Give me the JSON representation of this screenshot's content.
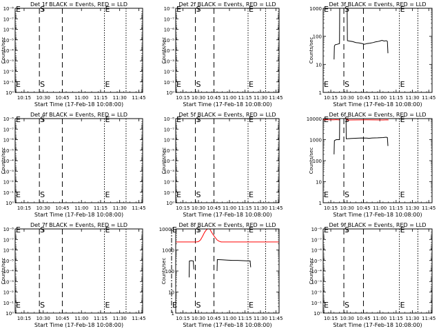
{
  "figure": {
    "background": "#ffffff",
    "axis_color": "#000000",
    "events_color": "#000000",
    "lld_color": "#ff0000"
  },
  "chart_data": [
    {
      "type": "line",
      "panel": "1",
      "title": "Det 1f BLACK = Events, RED = LLD",
      "xlabel": "Start Time (17-Feb-18 10:08:00)",
      "ylabel": "Counts/sec",
      "xlim_minutes": [
        0,
        100
      ],
      "ylim": [
        1,
        1e-08
      ],
      "y_scale": "log",
      "xtick_labels": [
        "10:15",
        "10:30",
        "10:45",
        "11:00",
        "11:15",
        "11:30",
        "11:45"
      ],
      "ytick_labels": [
        "10⁰",
        "10⁻¹",
        "10⁻²",
        "10⁻³",
        "10⁻⁴",
        "10⁻⁵",
        "10⁻⁶",
        "10⁻⁷",
        "10⁻⁸"
      ],
      "vlines": [
        {
          "time": "10:08",
          "style": "dashdot",
          "label": "E"
        },
        {
          "time": "10:27",
          "style": "dashed",
          "label": "S"
        },
        {
          "time": "10:45",
          "style": "dashed"
        },
        {
          "time": "11:18",
          "style": "dotted",
          "label": "E"
        },
        {
          "time": "11:35",
          "style": "dotted"
        }
      ],
      "series": []
    },
    {
      "type": "line",
      "panel": "2",
      "title": "Det 2f BLACK = Events, RED = LLD",
      "xlabel": "Start Time (17-Feb-18 10:08:00)",
      "ylabel": "Counts/sec",
      "xlim_minutes": [
        0,
        100
      ],
      "ylim": [
        1,
        1e-08
      ],
      "y_scale": "log",
      "xtick_labels": [
        "10:15",
        "10:30",
        "10:45",
        "11:00",
        "11:15",
        "11:30",
        "11:45"
      ],
      "ytick_labels": [
        "10⁰",
        "10⁻¹",
        "10⁻²",
        "10⁻³",
        "10⁻⁴",
        "10⁻⁵",
        "10⁻⁶",
        "10⁻⁷",
        "10⁻⁸"
      ],
      "vlines": [
        {
          "time": "10:08",
          "style": "dashdot",
          "label": "E"
        },
        {
          "time": "10:27",
          "style": "dashed",
          "label": "S"
        },
        {
          "time": "10:45",
          "style": "dashed"
        },
        {
          "time": "11:18",
          "style": "dotted",
          "label": "E"
        },
        {
          "time": "11:35",
          "style": "dotted"
        }
      ],
      "series": []
    },
    {
      "type": "line",
      "panel": "3",
      "title": "Det 3f BLACK = Events, RED = LLD",
      "xlabel": "Start Time (17-Feb-18 10:08:00)",
      "ylabel": "Counts/sec",
      "xlim_minutes": [
        0,
        100
      ],
      "ylim": [
        1,
        1000
      ],
      "y_scale": "log",
      "xtick_labels": [
        "10:15",
        "10:30",
        "10:45",
        "11:00",
        "11:15",
        "11:30",
        "11:45"
      ],
      "ytick_labels": [
        "1",
        "10",
        "100",
        "1000"
      ],
      "vlines": [
        {
          "time": "10:08",
          "style": "dashdot",
          "label": "E"
        },
        {
          "time": "10:27",
          "style": "dashed",
          "label": "S"
        },
        {
          "time": "10:45",
          "style": "dashed"
        },
        {
          "time": "11:18",
          "style": "dotted",
          "label": "E"
        },
        {
          "time": "11:35",
          "style": "dotted"
        }
      ],
      "series": [
        {
          "color": "#000000",
          "points": [
            [
              10,
              15
            ],
            [
              10.3,
              45
            ],
            [
              11,
              50
            ],
            [
              13,
              52
            ],
            [
              15,
              55
            ],
            [
              15.2,
              1000
            ]
          ]
        },
        {
          "color": "#000000",
          "points": [
            [
              22,
              1000
            ],
            [
              22.3,
              70
            ],
            [
              24,
              68
            ],
            [
              27,
              65
            ],
            [
              30,
              60
            ],
            [
              33,
              58
            ],
            [
              36,
              55
            ],
            [
              38,
              52
            ],
            [
              40,
              55
            ],
            [
              43,
              57
            ],
            [
              46,
              60
            ],
            [
              48,
              63
            ],
            [
              50,
              65
            ],
            [
              52,
              68
            ],
            [
              54,
              72
            ],
            [
              55,
              70
            ],
            [
              56,
              68
            ],
            [
              58,
              70
            ],
            [
              59,
              66
            ],
            [
              59.5,
              25
            ]
          ]
        }
      ]
    },
    {
      "type": "line",
      "panel": "4",
      "title": "Det 4f BLACK = Events, RED = LLD",
      "xlabel": "Start Time (17-Feb-18 10:08:00)",
      "ylabel": "Counts/sec",
      "xlim_minutes": [
        0,
        100
      ],
      "ylim": [
        1,
        1e-08
      ],
      "y_scale": "log",
      "xtick_labels": [
        "10:15",
        "10:30",
        "10:45",
        "11:00",
        "11:15",
        "11:30",
        "11:45"
      ],
      "ytick_labels": [
        "10⁰",
        "10⁻¹",
        "10⁻²",
        "10⁻³",
        "10⁻⁴",
        "10⁻⁵",
        "10⁻⁶",
        "10⁻⁷",
        "10⁻⁸"
      ],
      "vlines": [
        {
          "time": "10:08",
          "style": "dashdot",
          "label": "E"
        },
        {
          "time": "10:27",
          "style": "dashed",
          "label": "S"
        },
        {
          "time": "10:45",
          "style": "dashed"
        },
        {
          "time": "11:18",
          "style": "dotted",
          "label": "E"
        },
        {
          "time": "11:35",
          "style": "dotted"
        }
      ],
      "series": []
    },
    {
      "type": "line",
      "panel": "5",
      "title": "Det 5f BLACK = Events, RED = LLD",
      "xlabel": "Start Time (17-Feb-18 10:08:00)",
      "ylabel": "Counts/sec",
      "xlim_minutes": [
        0,
        100
      ],
      "ylim": [
        1,
        1e-08
      ],
      "y_scale": "log",
      "xtick_labels": [
        "10:15",
        "10:30",
        "10:45",
        "11:00",
        "11:15",
        "11:30",
        "11:45"
      ],
      "ytick_labels": [
        "10⁰",
        "10⁻¹",
        "10⁻²",
        "10⁻³",
        "10⁻⁴",
        "10⁻⁵",
        "10⁻⁶",
        "10⁻⁷",
        "10⁻⁸"
      ],
      "vlines": [
        {
          "time": "10:08",
          "style": "dashdot",
          "label": "E"
        },
        {
          "time": "10:27",
          "style": "dashed",
          "label": "S"
        },
        {
          "time": "10:45",
          "style": "dashed"
        },
        {
          "time": "11:18",
          "style": "dotted",
          "label": "E"
        },
        {
          "time": "11:35",
          "style": "dotted"
        }
      ],
      "series": []
    },
    {
      "type": "line",
      "panel": "6",
      "title": "Det 6f BLACK = Events, RED = LLD",
      "xlabel": "Start Time (17-Feb-18 10:08:00)",
      "ylabel": "Counts/sec",
      "xlim_minutes": [
        0,
        100
      ],
      "ylim": [
        1,
        10000
      ],
      "y_scale": "log",
      "xtick_labels": [
        "10:15",
        "10:30",
        "10:45",
        "11:00",
        "11:15",
        "11:30",
        "11:45"
      ],
      "ytick_labels": [
        "1",
        "10",
        "100",
        "1000",
        "10000"
      ],
      "vlines": [
        {
          "time": "10:08",
          "style": "dashdot",
          "label": "E"
        },
        {
          "time": "10:27",
          "style": "dashed",
          "label": "S"
        },
        {
          "time": "10:45",
          "style": "dashed"
        },
        {
          "time": "11:18",
          "style": "dotted",
          "label": "E"
        },
        {
          "time": "11:35",
          "style": "dotted"
        }
      ],
      "series": [
        {
          "color": "#ff0000",
          "points": [
            [
              0,
              8800
            ],
            [
              10,
              8800
            ],
            [
              12,
              8900
            ],
            [
              14,
              8800
            ],
            [
              15,
              8700
            ],
            [
              15.3,
              10000
            ]
          ]
        },
        {
          "color": "#ff0000",
          "points": [
            [
              21,
              10000
            ],
            [
              22,
              8600
            ],
            [
              40,
              8700
            ],
            [
              55,
              8600
            ],
            [
              59,
              8700
            ],
            [
              60,
              8600
            ]
          ]
        },
        {
          "color": "#000000",
          "points": [
            [
              10,
              200
            ],
            [
              10.3,
              900
            ],
            [
              12,
              1000
            ],
            [
              14,
              1000
            ],
            [
              15,
              1000
            ],
            [
              15.2,
              10000
            ]
          ]
        },
        {
          "color": "#000000",
          "points": [
            [
              21,
              10000
            ],
            [
              21.2,
              1100
            ],
            [
              28,
              1150
            ],
            [
              35,
              1200
            ],
            [
              40,
              1180
            ],
            [
              42,
              1150
            ],
            [
              45,
              1200
            ],
            [
              50,
              1220
            ],
            [
              55,
              1250
            ],
            [
              58,
              1300
            ],
            [
              59,
              1250
            ],
            [
              59.5,
              500
            ]
          ]
        }
      ]
    },
    {
      "type": "line",
      "panel": "7",
      "title": "Det 7f BLACK = Events, RED = LLD",
      "xlabel": "Start Time (17-Feb-18 10:08:00)",
      "ylabel": "Counts/sec",
      "xlim_minutes": [
        0,
        100
      ],
      "ylim": [
        1,
        1e-08
      ],
      "y_scale": "log",
      "xtick_labels": [
        "10:15",
        "10:30",
        "10:45",
        "11:00",
        "11:15",
        "11:30",
        "11:45"
      ],
      "ytick_labels": [
        "10⁰",
        "10⁻¹",
        "10⁻²",
        "10⁻³",
        "10⁻⁴",
        "10⁻⁵",
        "10⁻⁶",
        "10⁻⁷",
        "10⁻⁸"
      ],
      "vlines": [
        {
          "time": "10:08",
          "style": "dashdot",
          "label": "E"
        },
        {
          "time": "10:27",
          "style": "dashed",
          "label": "S"
        },
        {
          "time": "10:45",
          "style": "dashed"
        },
        {
          "time": "11:18",
          "style": "dotted",
          "label": "E"
        },
        {
          "time": "11:35",
          "style": "dotted"
        }
      ],
      "series": []
    },
    {
      "type": "line",
      "panel": "8",
      "title": "Det 8f BLACK = Events, RED = LLD",
      "xlabel": "Start Time (17-Feb-18 10:08:00)",
      "ylabel": "Counts/sec",
      "xlim_minutes": [
        0,
        100
      ],
      "ylim": [
        1,
        10000
      ],
      "y_scale": "log",
      "xtick_labels": [
        "10:15",
        "10:30",
        "10:45",
        "11:00",
        "11:15",
        "11:30",
        "11:45"
      ],
      "ytick_labels": [
        "1",
        "10",
        "100",
        "1000",
        "10000"
      ],
      "vlines": [
        {
          "time": "10:04",
          "style": "dashdot",
          "label": "E"
        },
        {
          "time": "10:27",
          "style": "dashed",
          "label": "S"
        },
        {
          "time": "10:45",
          "style": "dashed"
        },
        {
          "time": "11:18",
          "style": "dotted",
          "label": "E"
        },
        {
          "time": "11:35",
          "style": "dotted"
        }
      ],
      "series": [
        {
          "color": "#ff0000",
          "points": [
            [
              0,
              2400
            ],
            [
              20,
              2400
            ],
            [
              22,
              2500
            ],
            [
              24,
              3000
            ],
            [
              26,
              4500
            ],
            [
              28,
              7000
            ],
            [
              30,
              9500
            ],
            [
              31,
              10000
            ]
          ]
        },
        {
          "color": "#ff0000",
          "points": [
            [
              33,
              10000
            ],
            [
              34,
              8000
            ],
            [
              36,
              5500
            ],
            [
              38,
              4000
            ],
            [
              40,
              3000
            ],
            [
              42,
              2600
            ],
            [
              44,
              2400
            ],
            [
              60,
              2400
            ],
            [
              80,
              2400
            ],
            [
              100,
              2400
            ]
          ]
        },
        {
          "color": "#000000",
          "points": [
            [
              13,
              50
            ],
            [
              13.3,
              300
            ],
            [
              15,
              310
            ],
            [
              17,
              300
            ],
            [
              17.5,
              120
            ]
          ]
        },
        {
          "color": "#000000",
          "points": [
            [
              40,
              100
            ],
            [
              40.3,
              350
            ],
            [
              45,
              340
            ],
            [
              50,
              330
            ],
            [
              55,
              320
            ],
            [
              60,
              320
            ],
            [
              65,
              310
            ],
            [
              70,
              300
            ],
            [
              72,
              300
            ],
            [
              72.5,
              150
            ]
          ]
        }
      ]
    },
    {
      "type": "line",
      "panel": "9",
      "title": "Det 9f BLACK = Events, RED = LLD",
      "xlabel": "Start Time (17-Feb-18 10:08:00)",
      "ylabel": "Counts/sec",
      "xlim_minutes": [
        0,
        100
      ],
      "ylim": [
        1,
        1e-08
      ],
      "y_scale": "log",
      "xtick_labels": [
        "10:15",
        "10:30",
        "10:45",
        "11:00",
        "11:15",
        "11:30",
        "11:45"
      ],
      "ytick_labels": [
        "10⁰",
        "10⁻¹",
        "10⁻²",
        "10⁻³",
        "10⁻⁴",
        "10⁻⁵",
        "10⁻⁶",
        "10⁻⁷",
        "10⁻⁸"
      ],
      "vlines": [
        {
          "time": "10:08",
          "style": "dashdot",
          "label": "E"
        },
        {
          "time": "10:27",
          "style": "dashed",
          "label": "S"
        },
        {
          "time": "10:45",
          "style": "dashed"
        },
        {
          "time": "11:18",
          "style": "dotted",
          "label": "E"
        },
        {
          "time": "11:35",
          "style": "dotted"
        }
      ],
      "series": []
    }
  ]
}
